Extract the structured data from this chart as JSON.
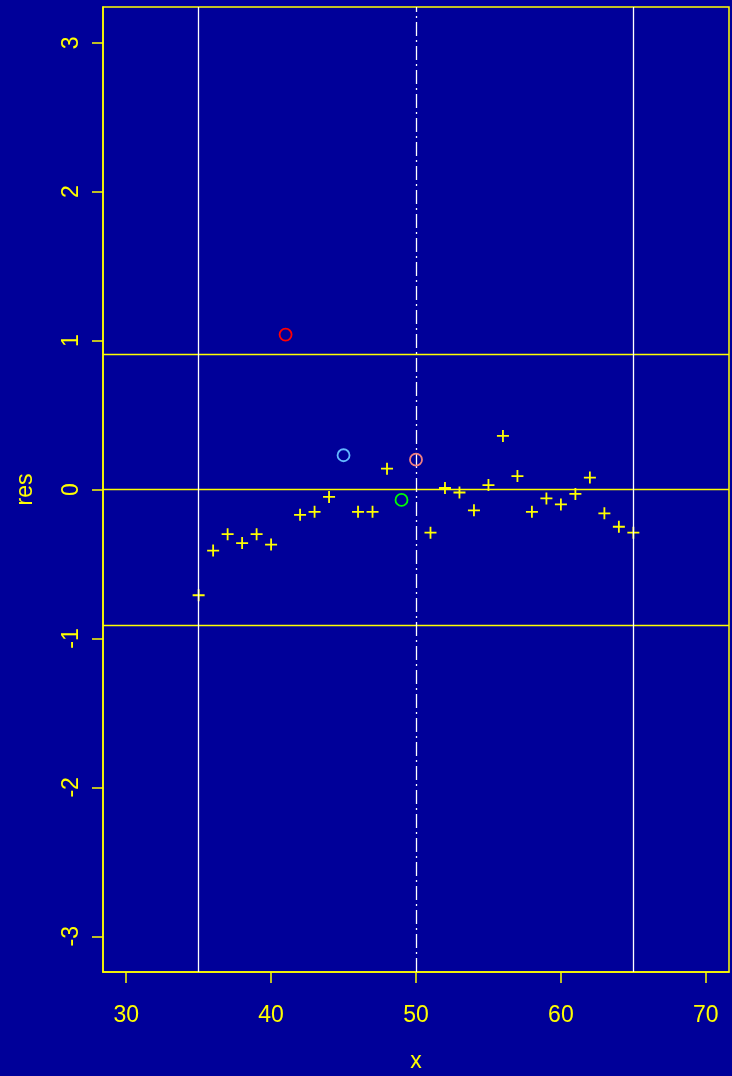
{
  "chart_data": {
    "type": "scatter",
    "xlabel": "x",
    "ylabel": "res",
    "xlim": [
      28.4,
      71.6
    ],
    "ylim": [
      -3.24,
      3.24
    ],
    "xticks": [
      30,
      40,
      50,
      60,
      70
    ],
    "yticks": [
      -3,
      -2,
      -1,
      0,
      1,
      2,
      3
    ],
    "grid": false,
    "marker": "cross",
    "series": [
      {
        "color": "#ffff00",
        "x": [
          35,
          36,
          37,
          38,
          39,
          40,
          42,
          43,
          44,
          46,
          47,
          48,
          51,
          52,
          53,
          54,
          55,
          56,
          57,
          58,
          59,
          60,
          61,
          62,
          63,
          64,
          65
        ],
        "values": [
          -0.71,
          -0.41,
          -0.3,
          -0.36,
          -0.3,
          -0.37,
          -0.17,
          -0.15,
          -0.05,
          -0.15,
          -0.15,
          0.14,
          -0.29,
          0.01,
          -0.02,
          -0.14,
          0.03,
          0.36,
          0.09,
          -0.15,
          -0.06,
          -0.1,
          -0.03,
          0.08,
          -0.16,
          -0.25,
          -0.29
        ]
      },
      {
        "color": "#ff0000",
        "marker": "circle",
        "x": [
          41
        ],
        "values": [
          1.04
        ]
      },
      {
        "color": "#63b8ff",
        "marker": "circle",
        "x": [
          45
        ],
        "values": [
          0.23
        ]
      },
      {
        "color": "#00ff00",
        "marker": "circle",
        "x": [
          49
        ],
        "values": [
          -0.07
        ]
      },
      {
        "color": "#f08080",
        "marker": "circle",
        "x": [
          50
        ],
        "values": [
          0.2
        ]
      }
    ],
    "ref_lines": [
      {
        "axis": "y",
        "value": 0.91,
        "color": "#ffff00",
        "line_style": "solid"
      },
      {
        "axis": "y",
        "value": 0,
        "color": "#ffff00",
        "line_style": "solid"
      },
      {
        "axis": "y",
        "value": -0.91,
        "color": "#ffff00",
        "line_style": "solid"
      },
      {
        "axis": "x",
        "value": 35,
        "color": "#ffffff",
        "line_style": "solid"
      },
      {
        "axis": "x",
        "value": 65,
        "color": "#ffffff",
        "line_style": "solid"
      },
      {
        "axis": "x",
        "value": 50,
        "color": "#ffffff",
        "line_style": "dashdot"
      }
    ]
  }
}
